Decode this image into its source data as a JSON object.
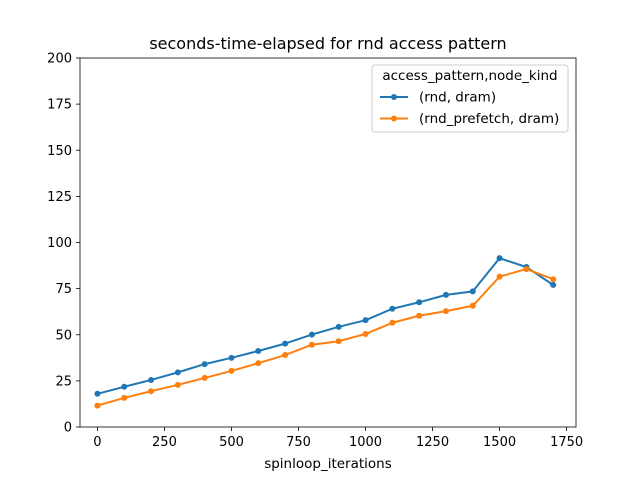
{
  "chart_data": {
    "type": "line",
    "title": "seconds-time-elapsed for rnd access pattern",
    "xlabel": "spinloop_iterations",
    "ylabel": "",
    "xlim": [
      -65,
      1785
    ],
    "ylim": [
      0,
      200
    ],
    "x_ticks": [
      0,
      250,
      500,
      750,
      1000,
      1250,
      1500,
      1750
    ],
    "y_ticks": [
      0,
      25,
      50,
      75,
      100,
      125,
      150,
      175,
      200
    ],
    "grid": false,
    "legend": {
      "title": "access_pattern,node_kind",
      "placement": "upper-right"
    },
    "x": [
      0,
      100,
      200,
      300,
      400,
      500,
      600,
      700,
      800,
      900,
      1000,
      1100,
      1200,
      1300,
      1400,
      1500,
      1600,
      1700
    ],
    "series": [
      {
        "name": "(rnd, dram)",
        "color": "#1f77b4",
        "values": [
          18,
          21.8,
          25.5,
          29.6,
          34.1,
          37.5,
          41.2,
          45.2,
          50.1,
          54.3,
          57.9,
          64.1,
          67.6,
          71.6,
          73.5,
          91.5,
          86.7,
          77
        ]
      },
      {
        "name": "(rnd_prefetch, dram)",
        "color": "#ff7f0e",
        "values": [
          11.6,
          15.8,
          19.4,
          22.8,
          26.6,
          30.4,
          34.6,
          39,
          44.6,
          46.5,
          50.4,
          56.5,
          60.3,
          62.8,
          65.7,
          81.5,
          85.6,
          80.1
        ]
      }
    ]
  }
}
